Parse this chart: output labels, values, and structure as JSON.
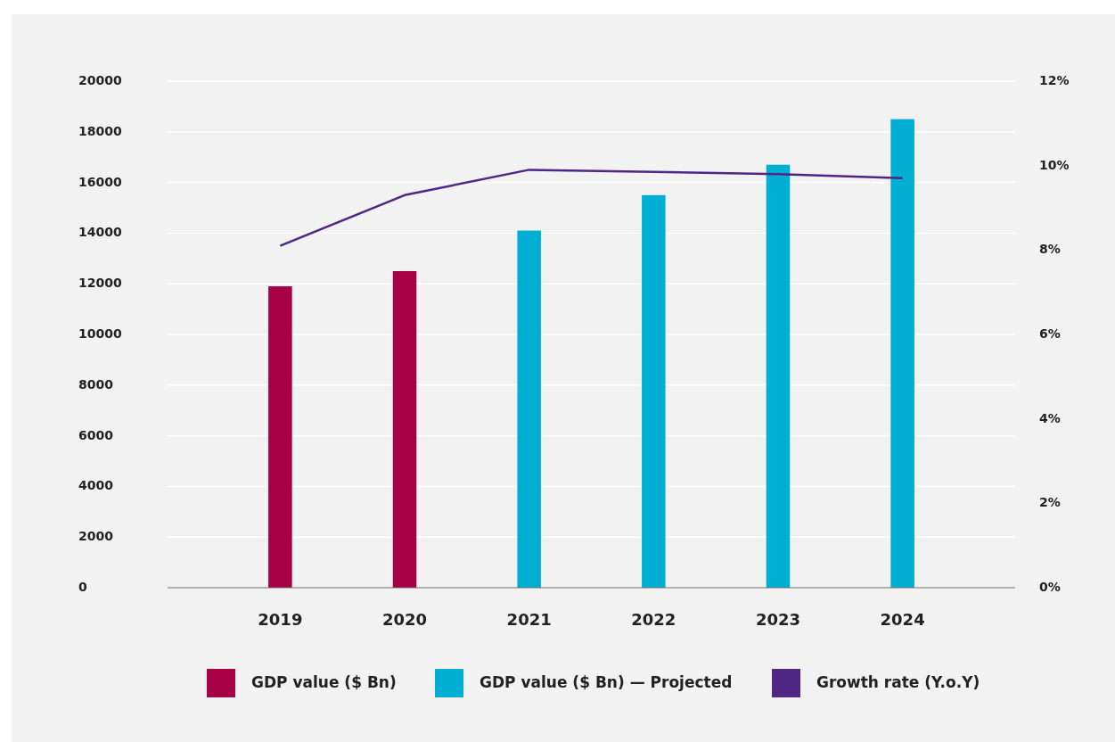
{
  "chart_data": {
    "type": "bar",
    "categories": [
      "2019",
      "2020",
      "2021",
      "2022",
      "2023",
      "2024"
    ],
    "stacked": true,
    "series": [
      {
        "name": "GDP value ($ Bn)",
        "color": "#a80044",
        "values": [
          11900,
          12500,
          null,
          null,
          null,
          null
        ]
      },
      {
        "name": "GDP value ($ Bn) — Projected",
        "color": "#00afd3",
        "values": [
          null,
          null,
          14100,
          15500,
          16700,
          18500
        ]
      },
      {
        "name": "Growth rate (Y.o.Y)",
        "type": "line",
        "axis": "y2",
        "color": "#4f2683",
        "values": [
          8.1,
          9.3,
          9.9,
          9.85,
          9.8,
          9.7
        ]
      }
    ],
    "ylim": [
      0,
      20000
    ],
    "yticks": [
      0,
      2000,
      4000,
      6000,
      8000,
      10000,
      12000,
      14000,
      16000,
      18000,
      20000
    ],
    "y2lim": [
      0,
      12
    ],
    "y2ticks": [
      {
        "value": 0,
        "label": "0%"
      },
      {
        "value": 2,
        "label": "2%"
      },
      {
        "value": 4,
        "label": "4%"
      },
      {
        "value": 6,
        "label": "6%"
      },
      {
        "value": 8,
        "label": "8%"
      },
      {
        "value": 10,
        "label": "10%"
      },
      {
        "value": 12,
        "label": "12%"
      }
    ],
    "grid": "y",
    "legend": "bottom",
    "marker": "none",
    "line_style": "solid"
  }
}
